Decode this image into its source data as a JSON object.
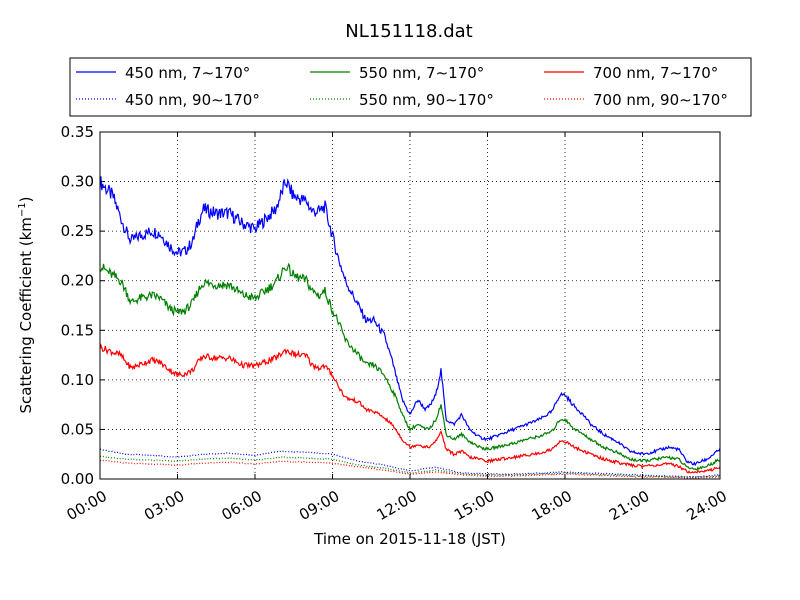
{
  "chart_data": {
    "type": "line",
    "title": "NL151118.dat",
    "xlabel": "Time on 2015-11-18 (JST)",
    "ylabel": "Scattering Coefficient (km",
    "ylabel_sup": "−1",
    "ylabel_close": ")",
    "xlim_hours": [
      0,
      24
    ],
    "ylim": [
      0,
      0.35
    ],
    "x_ticks": [
      {
        "hour": 0,
        "label": "00:00"
      },
      {
        "hour": 3,
        "label": "03:00"
      },
      {
        "hour": 6,
        "label": "06:00"
      },
      {
        "hour": 9,
        "label": "09:00"
      },
      {
        "hour": 12,
        "label": "12:00"
      },
      {
        "hour": 15,
        "label": "15:00"
      },
      {
        "hour": 18,
        "label": "18:00"
      },
      {
        "hour": 21,
        "label": "21:00"
      },
      {
        "hour": 24,
        "label": "24:00"
      }
    ],
    "y_ticks": [
      {
        "value": 0,
        "label": "0.00"
      },
      {
        "value": 0.05,
        "label": "0.05"
      },
      {
        "value": 0.1,
        "label": "0.10"
      },
      {
        "value": 0.15,
        "label": "0.15"
      },
      {
        "value": 0.2,
        "label": "0.20"
      },
      {
        "value": 0.25,
        "label": "0.25"
      },
      {
        "value": 0.3,
        "label": "0.30"
      },
      {
        "value": 0.35,
        "label": "0.35"
      }
    ],
    "grid": true,
    "legend_placement": "above plot, 3 columns",
    "series": [
      {
        "name": "450 nm, 7∼170°",
        "color": "#0000ff",
        "style": "solid",
        "points": [
          [
            0,
            0.3
          ],
          [
            0.5,
            0.285
          ],
          [
            1.0,
            0.25
          ],
          [
            1.2,
            0.24
          ],
          [
            1.5,
            0.245
          ],
          [
            2.0,
            0.25
          ],
          [
            2.3,
            0.248
          ],
          [
            2.7,
            0.235
          ],
          [
            3.0,
            0.228
          ],
          [
            3.3,
            0.23
          ],
          [
            3.6,
            0.24
          ],
          [
            3.8,
            0.26
          ],
          [
            4.0,
            0.272
          ],
          [
            4.5,
            0.268
          ],
          [
            5.0,
            0.268
          ],
          [
            5.5,
            0.258
          ],
          [
            6.0,
            0.252
          ],
          [
            6.4,
            0.262
          ],
          [
            6.8,
            0.272
          ],
          [
            7.2,
            0.3
          ],
          [
            7.5,
            0.285
          ],
          [
            8.0,
            0.28
          ],
          [
            8.2,
            0.27
          ],
          [
            8.5,
            0.27
          ],
          [
            8.7,
            0.275
          ],
          [
            9.0,
            0.245
          ],
          [
            9.2,
            0.225
          ],
          [
            9.5,
            0.2
          ],
          [
            10.0,
            0.175
          ],
          [
            10.3,
            0.16
          ],
          [
            10.6,
            0.16
          ],
          [
            11.0,
            0.145
          ],
          [
            11.3,
            0.12
          ],
          [
            11.5,
            0.1
          ],
          [
            11.7,
            0.08
          ],
          [
            12.0,
            0.065
          ],
          [
            12.3,
            0.08
          ],
          [
            12.6,
            0.07
          ],
          [
            12.8,
            0.075
          ],
          [
            13.0,
            0.085
          ],
          [
            13.2,
            0.11
          ],
          [
            13.4,
            0.06
          ],
          [
            13.7,
            0.055
          ],
          [
            14.0,
            0.065
          ],
          [
            14.3,
            0.05
          ],
          [
            14.7,
            0.042
          ],
          [
            15.0,
            0.04
          ],
          [
            15.5,
            0.045
          ],
          [
            16.0,
            0.05
          ],
          [
            16.5,
            0.055
          ],
          [
            17.0,
            0.06
          ],
          [
            17.5,
            0.068
          ],
          [
            17.8,
            0.085
          ],
          [
            18.0,
            0.085
          ],
          [
            18.3,
            0.075
          ],
          [
            18.7,
            0.065
          ],
          [
            19.0,
            0.055
          ],
          [
            19.5,
            0.045
          ],
          [
            20.0,
            0.038
          ],
          [
            20.5,
            0.028
          ],
          [
            21.0,
            0.025
          ],
          [
            21.5,
            0.028
          ],
          [
            22.0,
            0.032
          ],
          [
            22.4,
            0.03
          ],
          [
            22.7,
            0.018
          ],
          [
            23.0,
            0.015
          ],
          [
            23.5,
            0.02
          ],
          [
            24.0,
            0.03
          ]
        ]
      },
      {
        "name": "450 nm, 90∼170°",
        "color": "#0000ff",
        "style": "dotted",
        "points": [
          [
            0,
            0.03
          ],
          [
            1,
            0.025
          ],
          [
            2,
            0.024
          ],
          [
            3,
            0.022
          ],
          [
            4,
            0.025
          ],
          [
            5,
            0.026
          ],
          [
            6,
            0.024
          ],
          [
            7,
            0.028
          ],
          [
            8,
            0.027
          ],
          [
            9,
            0.025
          ],
          [
            10,
            0.018
          ],
          [
            11,
            0.014
          ],
          [
            12,
            0.008
          ],
          [
            13,
            0.012
          ],
          [
            14,
            0.006
          ],
          [
            15,
            0.005
          ],
          [
            16,
            0.005
          ],
          [
            17,
            0.006
          ],
          [
            18,
            0.007
          ],
          [
            19,
            0.006
          ],
          [
            20,
            0.005
          ],
          [
            21,
            0.004
          ],
          [
            22,
            0.003
          ],
          [
            23,
            0.002
          ],
          [
            24,
            0.004
          ]
        ]
      },
      {
        "name": "550 nm, 7∼170°",
        "color": "#008000",
        "style": "solid",
        "points": [
          [
            0,
            0.215
          ],
          [
            0.5,
            0.205
          ],
          [
            0.8,
            0.2
          ],
          [
            1.0,
            0.19
          ],
          [
            1.2,
            0.178
          ],
          [
            1.5,
            0.182
          ],
          [
            2.0,
            0.185
          ],
          [
            2.3,
            0.183
          ],
          [
            2.7,
            0.172
          ],
          [
            3.0,
            0.168
          ],
          [
            3.3,
            0.17
          ],
          [
            3.6,
            0.178
          ],
          [
            3.8,
            0.19
          ],
          [
            4.0,
            0.198
          ],
          [
            4.5,
            0.196
          ],
          [
            5.0,
            0.196
          ],
          [
            5.5,
            0.186
          ],
          [
            6.0,
            0.182
          ],
          [
            6.4,
            0.19
          ],
          [
            6.8,
            0.198
          ],
          [
            7.2,
            0.215
          ],
          [
            7.5,
            0.205
          ],
          [
            8.0,
            0.2
          ],
          [
            8.2,
            0.19
          ],
          [
            8.5,
            0.185
          ],
          [
            8.7,
            0.19
          ],
          [
            9.0,
            0.17
          ],
          [
            9.2,
            0.16
          ],
          [
            9.5,
            0.14
          ],
          [
            10.0,
            0.125
          ],
          [
            10.3,
            0.115
          ],
          [
            10.6,
            0.115
          ],
          [
            11.0,
            0.105
          ],
          [
            11.3,
            0.09
          ],
          [
            11.5,
            0.08
          ],
          [
            11.7,
            0.065
          ],
          [
            12.0,
            0.05
          ],
          [
            12.3,
            0.055
          ],
          [
            12.6,
            0.05
          ],
          [
            12.8,
            0.052
          ],
          [
            13.0,
            0.06
          ],
          [
            13.2,
            0.075
          ],
          [
            13.4,
            0.045
          ],
          [
            13.7,
            0.04
          ],
          [
            14.0,
            0.045
          ],
          [
            14.3,
            0.038
          ],
          [
            14.7,
            0.032
          ],
          [
            15.0,
            0.03
          ],
          [
            15.5,
            0.033
          ],
          [
            16.0,
            0.036
          ],
          [
            16.5,
            0.04
          ],
          [
            17.0,
            0.043
          ],
          [
            17.5,
            0.048
          ],
          [
            17.8,
            0.06
          ],
          [
            18.0,
            0.06
          ],
          [
            18.3,
            0.052
          ],
          [
            18.7,
            0.045
          ],
          [
            19.0,
            0.04
          ],
          [
            19.5,
            0.032
          ],
          [
            20.0,
            0.027
          ],
          [
            20.5,
            0.02
          ],
          [
            21.0,
            0.018
          ],
          [
            21.5,
            0.02
          ],
          [
            22.0,
            0.022
          ],
          [
            22.4,
            0.02
          ],
          [
            22.7,
            0.012
          ],
          [
            23.0,
            0.01
          ],
          [
            23.5,
            0.013
          ],
          [
            24.0,
            0.02
          ]
        ]
      },
      {
        "name": "550 nm, 90∼170°",
        "color": "#008000",
        "style": "dotted",
        "points": [
          [
            0,
            0.023
          ],
          [
            1,
            0.02
          ],
          [
            2,
            0.019
          ],
          [
            3,
            0.018
          ],
          [
            4,
            0.02
          ],
          [
            5,
            0.021
          ],
          [
            6,
            0.019
          ],
          [
            7,
            0.022
          ],
          [
            8,
            0.021
          ],
          [
            9,
            0.02
          ],
          [
            10,
            0.014
          ],
          [
            11,
            0.011
          ],
          [
            12,
            0.006
          ],
          [
            13,
            0.009
          ],
          [
            14,
            0.005
          ],
          [
            15,
            0.004
          ],
          [
            16,
            0.004
          ],
          [
            17,
            0.005
          ],
          [
            18,
            0.006
          ],
          [
            19,
            0.005
          ],
          [
            20,
            0.004
          ],
          [
            21,
            0.003
          ],
          [
            22,
            0.002
          ],
          [
            23,
            0.002
          ],
          [
            24,
            0.003
          ]
        ]
      },
      {
        "name": "700 nm, 7∼170°",
        "color": "#ff0000",
        "style": "solid",
        "points": [
          [
            0,
            0.133
          ],
          [
            0.5,
            0.128
          ],
          [
            0.8,
            0.125
          ],
          [
            1.0,
            0.118
          ],
          [
            1.2,
            0.112
          ],
          [
            1.5,
            0.115
          ],
          [
            2.0,
            0.12
          ],
          [
            2.3,
            0.118
          ],
          [
            2.7,
            0.11
          ],
          [
            3.0,
            0.105
          ],
          [
            3.3,
            0.106
          ],
          [
            3.6,
            0.11
          ],
          [
            3.8,
            0.118
          ],
          [
            4.0,
            0.124
          ],
          [
            4.5,
            0.122
          ],
          [
            5.0,
            0.122
          ],
          [
            5.5,
            0.115
          ],
          [
            6.0,
            0.114
          ],
          [
            6.4,
            0.118
          ],
          [
            6.8,
            0.122
          ],
          [
            7.2,
            0.13
          ],
          [
            7.5,
            0.126
          ],
          [
            8.0,
            0.124
          ],
          [
            8.2,
            0.115
          ],
          [
            8.5,
            0.112
          ],
          [
            8.7,
            0.114
          ],
          [
            9.0,
            0.105
          ],
          [
            9.2,
            0.095
          ],
          [
            9.5,
            0.082
          ],
          [
            10.0,
            0.078
          ],
          [
            10.3,
            0.07
          ],
          [
            10.6,
            0.068
          ],
          [
            11.0,
            0.062
          ],
          [
            11.3,
            0.055
          ],
          [
            11.5,
            0.048
          ],
          [
            11.7,
            0.04
          ],
          [
            12.0,
            0.032
          ],
          [
            12.3,
            0.035
          ],
          [
            12.6,
            0.032
          ],
          [
            12.8,
            0.033
          ],
          [
            13.0,
            0.038
          ],
          [
            13.2,
            0.048
          ],
          [
            13.4,
            0.03
          ],
          [
            13.7,
            0.025
          ],
          [
            14.0,
            0.028
          ],
          [
            14.3,
            0.022
          ],
          [
            14.7,
            0.02
          ],
          [
            15.0,
            0.018
          ],
          [
            15.5,
            0.02
          ],
          [
            16.0,
            0.022
          ],
          [
            16.5,
            0.024
          ],
          [
            17.0,
            0.026
          ],
          [
            17.5,
            0.03
          ],
          [
            17.8,
            0.038
          ],
          [
            18.0,
            0.038
          ],
          [
            18.3,
            0.033
          ],
          [
            18.7,
            0.028
          ],
          [
            19.0,
            0.025
          ],
          [
            19.5,
            0.02
          ],
          [
            20.0,
            0.017
          ],
          [
            20.5,
            0.014
          ],
          [
            21.0,
            0.013
          ],
          [
            21.5,
            0.014
          ],
          [
            22.0,
            0.015
          ],
          [
            22.4,
            0.013
          ],
          [
            22.7,
            0.008
          ],
          [
            23.0,
            0.007
          ],
          [
            23.5,
            0.008
          ],
          [
            24.0,
            0.012
          ]
        ]
      },
      {
        "name": "700 nm, 90∼170°",
        "color": "#ff0000",
        "style": "dotted",
        "points": [
          [
            0,
            0.019
          ],
          [
            1,
            0.016
          ],
          [
            2,
            0.015
          ],
          [
            3,
            0.014
          ],
          [
            4,
            0.016
          ],
          [
            5,
            0.017
          ],
          [
            6,
            0.015
          ],
          [
            7,
            0.018
          ],
          [
            8,
            0.017
          ],
          [
            9,
            0.016
          ],
          [
            10,
            0.012
          ],
          [
            11,
            0.009
          ],
          [
            12,
            0.005
          ],
          [
            13,
            0.007
          ],
          [
            14,
            0.004
          ],
          [
            15,
            0.003
          ],
          [
            16,
            0.003
          ],
          [
            17,
            0.004
          ],
          [
            18,
            0.005
          ],
          [
            19,
            0.004
          ],
          [
            20,
            0.003
          ],
          [
            21,
            0.002
          ],
          [
            22,
            0.002
          ],
          [
            23,
            0.001
          ],
          [
            24,
            0.002
          ]
        ]
      }
    ]
  }
}
